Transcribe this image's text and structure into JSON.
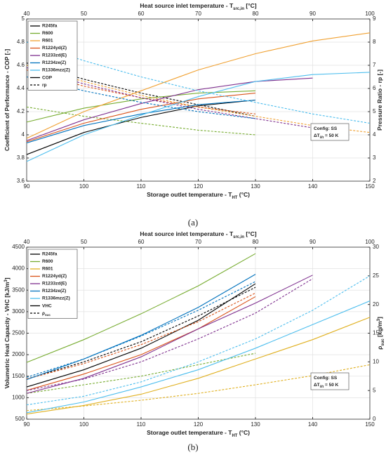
{
  "chart_data": [
    {
      "type": "line",
      "x": [
        90,
        100,
        110,
        120,
        130,
        140,
        150
      ],
      "xlim": [
        90,
        150
      ],
      "xticks": [
        90,
        100,
        110,
        120,
        130,
        140,
        150
      ],
      "x2lim": [
        40,
        100
      ],
      "x2ticks": [
        40,
        50,
        60,
        70,
        80,
        90,
        100
      ],
      "ylim": [
        3.6,
        5
      ],
      "yticks": [
        3.6,
        3.8,
        4,
        4.2,
        4.4,
        4.6,
        4.8,
        5
      ],
      "y2lim": [
        2,
        9
      ],
      "y2ticks": [
        2,
        3,
        4,
        5,
        6,
        7,
        8,
        9
      ],
      "grid": true,
      "legend": "upper left",
      "x_label": [
        {
          "text": "Storage outlet temperature - T"
        },
        {
          "text": "HT",
          "shift": "sub"
        },
        {
          "text": " (°C)"
        }
      ],
      "x2_label": [
        {
          "text": "Heat source inlet temperature - T"
        },
        {
          "text": "src,in",
          "shift": "sub"
        },
        {
          "text": " [°C]"
        }
      ],
      "y_label": [
        {
          "text": "Coefficient of Performance - COP [-]"
        }
      ],
      "y2_label": [
        {
          "text": "Pressure Ratio - rp [-]"
        }
      ],
      "legend_extra": [
        {
          "label": [
            {
              "text": "COP"
            }
          ],
          "dashed": false
        },
        {
          "label": [
            {
              "text": "rp"
            }
          ],
          "dashed": true
        }
      ],
      "annotation": [
        [
          {
            "text": "Config: SS"
          }
        ],
        [
          {
            "text": "ΔT"
          },
          {
            "text": "lift",
            "shift": "sub"
          },
          {
            "text": " = 50 K"
          }
        ]
      ],
      "caption": "(a)",
      "series": [
        {
          "name": "R245fa",
          "color": "#000000",
          "values": [
            3.83,
            4.02,
            4.15,
            4.25,
            4.3,
            null,
            null
          ],
          "y2_values": [
            7.1,
            6.4,
            5.8,
            5.3,
            4.8,
            null,
            null
          ]
        },
        {
          "name": "R600",
          "color": "#77ac30",
          "values": [
            4.11,
            4.23,
            4.31,
            4.36,
            4.38,
            null,
            null
          ],
          "y2_values": [
            5.2,
            4.8,
            4.5,
            4.2,
            4.0,
            null,
            null
          ]
        },
        {
          "name": "R601",
          "color": "#f0a030",
          "values": [
            3.97,
            4.2,
            4.38,
            4.56,
            4.7,
            4.81,
            4.88
          ],
          "y2_values": [
            7.0,
            6.3,
            5.7,
            5.2,
            4.8,
            4.4,
            4.1
          ]
        },
        {
          "name": "R1224yd(Z)",
          "color": "#d95319",
          "values": [
            3.94,
            4.1,
            4.22,
            4.31,
            4.36,
            null,
            null
          ],
          "y2_values": [
            6.8,
            6.1,
            5.6,
            5.2,
            4.9,
            null,
            null
          ]
        },
        {
          "name": "R1233zd(E)",
          "color": "#7e2f8e",
          "values": [
            3.95,
            4.13,
            4.27,
            4.39,
            4.46,
            4.49,
            null
          ],
          "y2_values": [
            6.9,
            6.2,
            5.6,
            5.1,
            4.7,
            4.3,
            null
          ]
        },
        {
          "name": "R1234ze(Z)",
          "color": "#0072bd",
          "values": [
            3.93,
            4.08,
            4.18,
            4.26,
            4.3,
            null,
            null
          ],
          "y2_values": [
            6.5,
            5.9,
            5.4,
            5.0,
            4.7,
            null,
            null
          ]
        },
        {
          "name": "R1336mzz(Z)",
          "color": "#4dbeee",
          "values": [
            3.77,
            4.0,
            4.17,
            4.33,
            4.46,
            4.52,
            4.54
          ],
          "y2_values": [
            8.0,
            7.2,
            6.5,
            5.9,
            5.4,
            4.9,
            4.5
          ]
        }
      ]
    },
    {
      "type": "line",
      "x": [
        90,
        100,
        110,
        120,
        130,
        140,
        150
      ],
      "xlim": [
        90,
        150
      ],
      "xticks": [
        90,
        100,
        110,
        120,
        130,
        140,
        150
      ],
      "x2lim": [
        40,
        100
      ],
      "x2ticks": [
        40,
        50,
        60,
        70,
        80,
        90,
        100
      ],
      "ylim": [
        500,
        4500
      ],
      "yticks": [
        500,
        1000,
        1500,
        2000,
        2500,
        3000,
        3500,
        4000,
        4500
      ],
      "y2lim": [
        0,
        30
      ],
      "y2ticks": [
        0,
        5,
        10,
        15,
        20,
        25,
        30
      ],
      "grid": true,
      "legend": "upper left",
      "x_label": [
        {
          "text": "Storage outlet temperature - T"
        },
        {
          "text": "HT",
          "shift": "sub"
        },
        {
          "text": " (°C)"
        }
      ],
      "x2_label": [
        {
          "text": "Heat source inlet temperature - T"
        },
        {
          "text": "src,in",
          "shift": "sub"
        },
        {
          "text": " [°C]"
        }
      ],
      "y_label": [
        {
          "text": "Volumetric Heat Capacity - VHC [kJ/m"
        },
        {
          "text": "3",
          "shift": "sup"
        },
        {
          "text": "]"
        }
      ],
      "y2_label": [
        {
          "text": "ρ"
        },
        {
          "text": "suc",
          "shift": "sub"
        },
        {
          "text": " [kg/m"
        },
        {
          "text": "3",
          "shift": "sup"
        },
        {
          "text": "]"
        }
      ],
      "legend_extra": [
        {
          "label": [
            {
              "text": "VHC"
            }
          ],
          "dashed": false
        },
        {
          "label": [
            {
              "text": "ρ"
            },
            {
              "text": "suc",
              "shift": "sub"
            }
          ],
          "dashed": true
        }
      ],
      "annotation": [
        [
          {
            "text": "Config: SS"
          }
        ],
        [
          {
            "text": "ΔT"
          },
          {
            "text": "lift",
            "shift": "sub"
          },
          {
            "text": " = 50 K"
          }
        ]
      ],
      "caption": "(b)",
      "series": [
        {
          "name": "R245fa",
          "color": "#000000",
          "values": [
            1250,
            1650,
            2150,
            2800,
            3650,
            null,
            null
          ],
          "y2_values": [
            7,
            10,
            13.5,
            18,
            23,
            null,
            null
          ]
        },
        {
          "name": "R600",
          "color": "#77ac30",
          "values": [
            1820,
            2350,
            2950,
            3600,
            4350,
            null,
            null
          ],
          "y2_values": [
            4.5,
            6,
            7.5,
            9.5,
            11.5,
            null,
            null
          ]
        },
        {
          "name": "R601",
          "color": "#e0b020",
          "values": [
            620,
            820,
            1080,
            1450,
            1900,
            2350,
            2870
          ],
          "y2_values": [
            1.5,
            2.3,
            3.3,
            4.5,
            6,
            7.6,
            9.5
          ]
        },
        {
          "name": "R1224yd(Z)",
          "color": "#d95319",
          "values": [
            1170,
            1550,
            2000,
            2600,
            3350,
            null,
            null
          ],
          "y2_values": [
            7,
            9.7,
            13,
            17,
            22,
            null,
            null
          ]
        },
        {
          "name": "R1233zd(E)",
          "color": "#7e2f8e",
          "values": [
            1100,
            1450,
            1950,
            2600,
            3200,
            3850,
            null
          ],
          "y2_values": [
            5,
            7,
            10,
            14,
            18.5,
            24.5,
            null
          ]
        },
        {
          "name": "R1234ze(Z)",
          "color": "#0072bd",
          "values": [
            1420,
            1900,
            2450,
            3100,
            3870,
            null,
            null
          ],
          "y2_values": [
            7.3,
            10.5,
            14.5,
            19,
            24,
            null,
            null
          ]
        },
        {
          "name": "R1336mzz(Z)",
          "color": "#4dbeee",
          "values": [
            650,
            900,
            1250,
            1650,
            2150,
            2700,
            3250
          ],
          "y2_values": [
            2.5,
            4,
            6.5,
            10,
            14,
            19,
            25
          ]
        }
      ]
    }
  ]
}
